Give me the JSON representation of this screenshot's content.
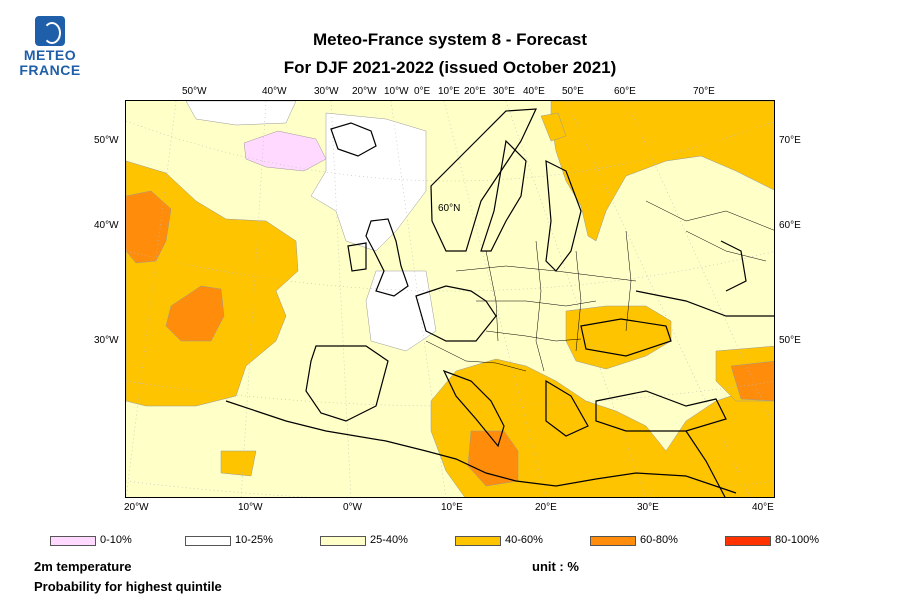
{
  "logo": {
    "line1": "METEO",
    "line2": "FRANCE"
  },
  "title": {
    "line1": "Meteo-France system 8  -  Forecast",
    "line2": "For DJF 2021-2022      (issued October 2021)"
  },
  "map": {
    "top_labels": [
      "50°W",
      "40°W",
      "30°W",
      "20°W",
      "10°W",
      "0°E",
      "10°E",
      "20°E",
      "30°E",
      "40°E",
      "50°E",
      "60°E",
      "70°E"
    ],
    "bottom_labels": [
      "20°W",
      "10°W",
      "0°W",
      "10°E",
      "20°E",
      "30°E",
      "40°E"
    ],
    "left_labels": [
      "50°W",
      "40°W",
      "30°W"
    ],
    "right_labels": [
      "70°E",
      "60°E",
      "50°E"
    ],
    "inner_label": "60°N",
    "colors": {
      "c0": "#ffd9ff",
      "c1": "#ffffff",
      "c2": "#ffffc8",
      "c3": "#ffc400",
      "c4": "#ff8c0a",
      "c5": "#ff3200"
    }
  },
  "legend": [
    {
      "label": "0-10%",
      "color": "#ffd9ff"
    },
    {
      "label": "10-25%",
      "color": "#ffffff"
    },
    {
      "label": "25-40%",
      "color": "#ffffc8"
    },
    {
      "label": "40-60%",
      "color": "#ffc400"
    },
    {
      "label": "60-80%",
      "color": "#ff8c0a"
    },
    {
      "label": "80-100%",
      "color": "#ff3200"
    }
  ],
  "footer": {
    "variable": "2m temperature",
    "subtitle": "Probability for highest quintile",
    "unit": "unit : %"
  }
}
